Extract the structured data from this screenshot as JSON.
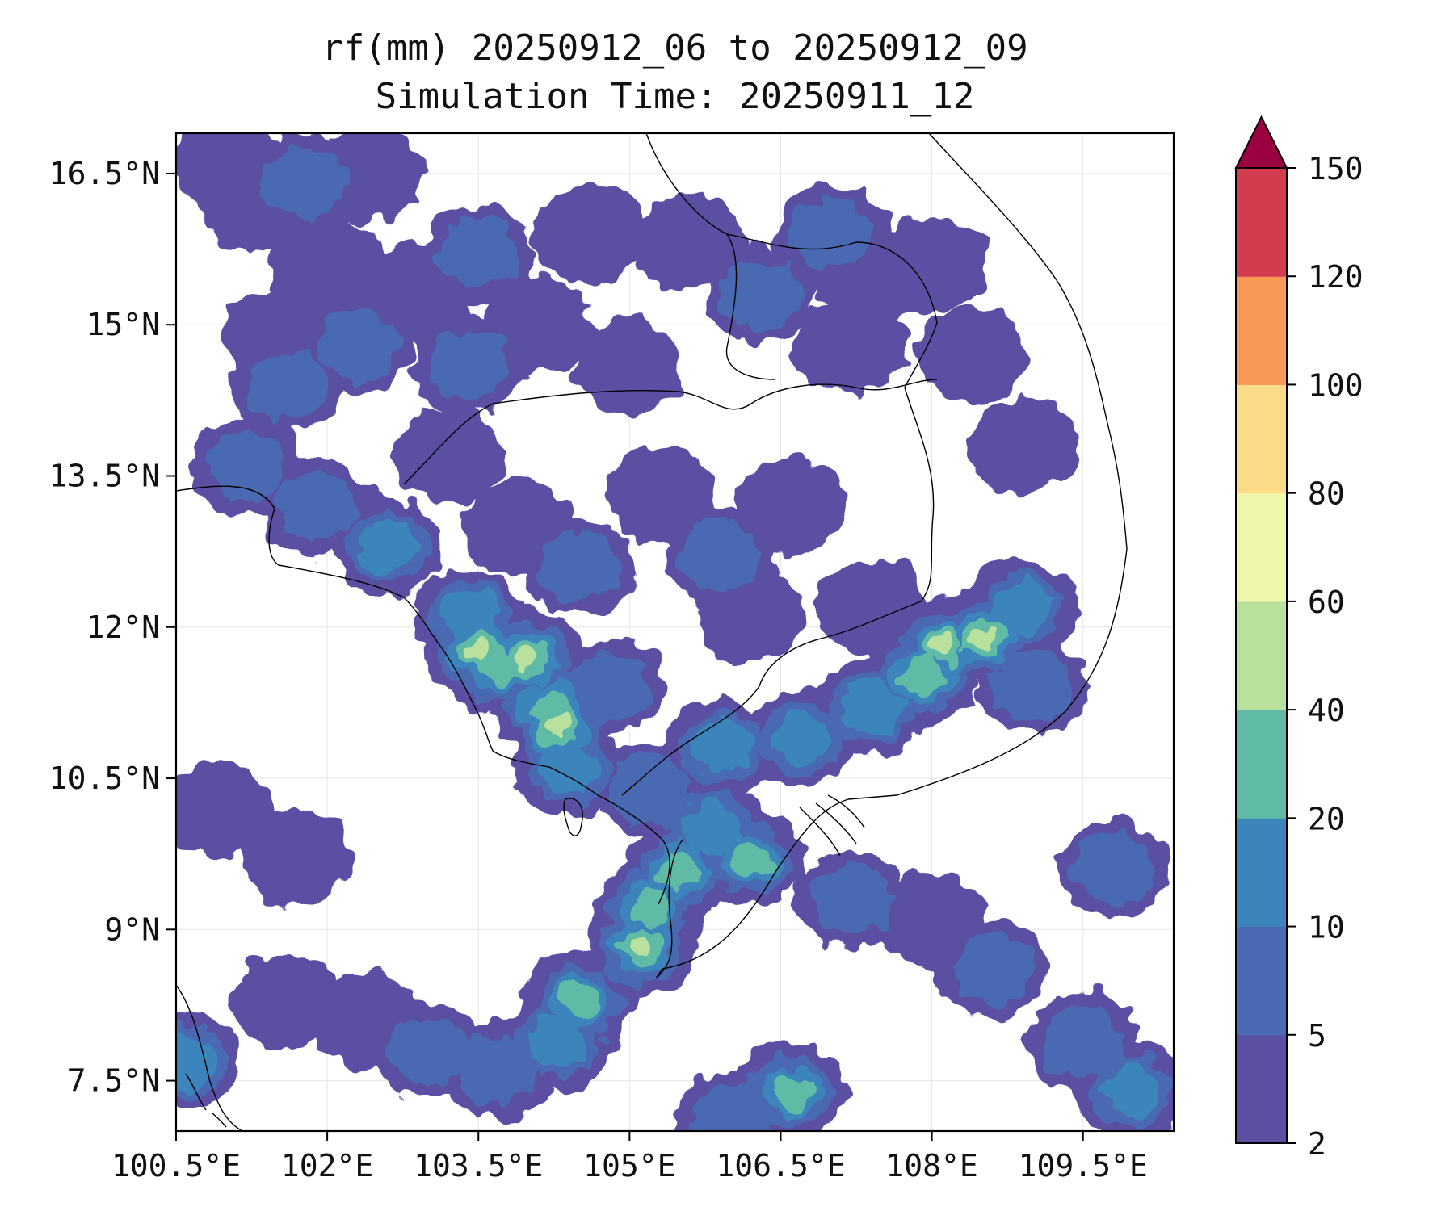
{
  "title": {
    "line1": "rf(mm) 20250912_06 to 20250912_09",
    "line2": "Simulation Time: 20250911_12"
  },
  "map": {
    "lon_range": [
      100.5,
      110.4
    ],
    "lat_range": [
      7.0,
      16.9
    ],
    "x_ticks": [
      "100.5°E",
      "102°E",
      "103.5°E",
      "105°E",
      "106.5°E",
      "108°E",
      "109.5°E"
    ],
    "y_ticks": [
      "16.5°N",
      "15°N",
      "13.5°N",
      "12°N",
      "10.5°N",
      "9°N",
      "7.5°N"
    ],
    "grid": true,
    "rainfall_cells": [
      {
        "lon": 101.0,
        "lat": 16.6,
        "level": 0
      },
      {
        "lon": 101.3,
        "lat": 16.2,
        "level": 0
      },
      {
        "lon": 101.8,
        "lat": 16.4,
        "level": 1
      },
      {
        "lon": 102.4,
        "lat": 16.5,
        "level": 0
      },
      {
        "lon": 102.0,
        "lat": 15.6,
        "level": 0
      },
      {
        "lon": 101.5,
        "lat": 14.9,
        "level": 0
      },
      {
        "lon": 101.6,
        "lat": 14.4,
        "level": 1
      },
      {
        "lon": 102.3,
        "lat": 14.8,
        "level": 1
      },
      {
        "lon": 102.9,
        "lat": 15.3,
        "level": 0
      },
      {
        "lon": 103.5,
        "lat": 15.7,
        "level": 1
      },
      {
        "lon": 103.4,
        "lat": 14.6,
        "level": 1
      },
      {
        "lon": 104.1,
        "lat": 15.0,
        "level": 0
      },
      {
        "lon": 104.6,
        "lat": 15.9,
        "level": 0
      },
      {
        "lon": 105.0,
        "lat": 14.6,
        "level": 0
      },
      {
        "lon": 105.6,
        "lat": 15.8,
        "level": 0
      },
      {
        "lon": 106.3,
        "lat": 15.3,
        "level": 1
      },
      {
        "lon": 107.0,
        "lat": 15.9,
        "level": 1
      },
      {
        "lon": 107.4,
        "lat": 15.5,
        "level": 0
      },
      {
        "lon": 107.2,
        "lat": 14.8,
        "level": 0
      },
      {
        "lon": 108.0,
        "lat": 15.6,
        "level": 0
      },
      {
        "lon": 108.4,
        "lat": 14.7,
        "level": 0
      },
      {
        "lon": 108.9,
        "lat": 13.8,
        "level": 0
      },
      {
        "lon": 101.2,
        "lat": 13.6,
        "level": 1
      },
      {
        "lon": 101.9,
        "lat": 13.2,
        "level": 1
      },
      {
        "lon": 102.6,
        "lat": 12.8,
        "level": 2
      },
      {
        "lon": 103.2,
        "lat": 13.7,
        "level": 0
      },
      {
        "lon": 103.9,
        "lat": 13.0,
        "level": 0
      },
      {
        "lon": 104.5,
        "lat": 12.6,
        "level": 1
      },
      {
        "lon": 105.3,
        "lat": 13.3,
        "level": 0
      },
      {
        "lon": 105.9,
        "lat": 12.7,
        "level": 1
      },
      {
        "lon": 106.6,
        "lat": 13.2,
        "level": 0
      },
      {
        "lon": 106.2,
        "lat": 12.1,
        "level": 0
      },
      {
        "lon": 107.4,
        "lat": 12.2,
        "level": 0
      },
      {
        "lon": 103.4,
        "lat": 12.1,
        "level": 2
      },
      {
        "lon": 103.7,
        "lat": 11.6,
        "level": 3
      },
      {
        "lon": 103.5,
        "lat": 11.8,
        "level": 4
      },
      {
        "lon": 104.0,
        "lat": 11.7,
        "level": 4
      },
      {
        "lon": 104.2,
        "lat": 11.2,
        "level": 3
      },
      {
        "lon": 104.3,
        "lat": 11.0,
        "level": 4
      },
      {
        "lon": 104.8,
        "lat": 11.4,
        "level": 1
      },
      {
        "lon": 104.4,
        "lat": 10.6,
        "level": 2
      },
      {
        "lon": 105.2,
        "lat": 10.4,
        "level": 1
      },
      {
        "lon": 105.9,
        "lat": 10.8,
        "level": 2
      },
      {
        "lon": 106.7,
        "lat": 10.9,
        "level": 2
      },
      {
        "lon": 107.4,
        "lat": 11.2,
        "level": 2
      },
      {
        "lon": 107.9,
        "lat": 11.5,
        "level": 3
      },
      {
        "lon": 108.1,
        "lat": 11.8,
        "level": 4
      },
      {
        "lon": 108.5,
        "lat": 11.9,
        "level": 4
      },
      {
        "lon": 108.9,
        "lat": 12.2,
        "level": 2
      },
      {
        "lon": 109.0,
        "lat": 11.4,
        "level": 1
      },
      {
        "lon": 105.8,
        "lat": 10.0,
        "level": 2
      },
      {
        "lon": 105.5,
        "lat": 9.6,
        "level": 3
      },
      {
        "lon": 106.2,
        "lat": 9.7,
        "level": 3
      },
      {
        "lon": 105.2,
        "lat": 9.2,
        "level": 3
      },
      {
        "lon": 105.1,
        "lat": 8.8,
        "level": 4
      },
      {
        "lon": 104.5,
        "lat": 8.3,
        "level": 3
      },
      {
        "lon": 104.3,
        "lat": 7.9,
        "level": 2
      },
      {
        "lon": 103.7,
        "lat": 7.6,
        "level": 1
      },
      {
        "lon": 103.0,
        "lat": 7.8,
        "level": 1
      },
      {
        "lon": 102.4,
        "lat": 8.1,
        "level": 0
      },
      {
        "lon": 106.6,
        "lat": 7.4,
        "level": 3
      },
      {
        "lon": 106.0,
        "lat": 7.1,
        "level": 1
      },
      {
        "lon": 107.2,
        "lat": 9.3,
        "level": 1
      },
      {
        "lon": 108.0,
        "lat": 9.1,
        "level": 0
      },
      {
        "lon": 108.6,
        "lat": 8.6,
        "level": 1
      },
      {
        "lon": 109.5,
        "lat": 7.9,
        "level": 1
      },
      {
        "lon": 110.0,
        "lat": 7.4,
        "level": 2
      },
      {
        "lon": 109.8,
        "lat": 9.6,
        "level": 1
      },
      {
        "lon": 100.6,
        "lat": 7.7,
        "level": 2
      },
      {
        "lon": 101.6,
        "lat": 8.3,
        "level": 0
      },
      {
        "lon": 100.9,
        "lat": 10.2,
        "level": 0
      },
      {
        "lon": 101.7,
        "lat": 9.7,
        "level": 0
      }
    ]
  },
  "colorbar": {
    "boundaries": [
      "2",
      "5",
      "10",
      "20",
      "40",
      "60",
      "80",
      "100",
      "120",
      "150"
    ],
    "colors": [
      "#5a4fa2",
      "#4a6bb3",
      "#3b84bc",
      "#5fbaa6",
      "#b9e09c",
      "#eff7aa",
      "#fcdb88",
      "#f99857",
      "#d33b4e"
    ],
    "extend_color": "#9b0041",
    "extend": "max"
  }
}
